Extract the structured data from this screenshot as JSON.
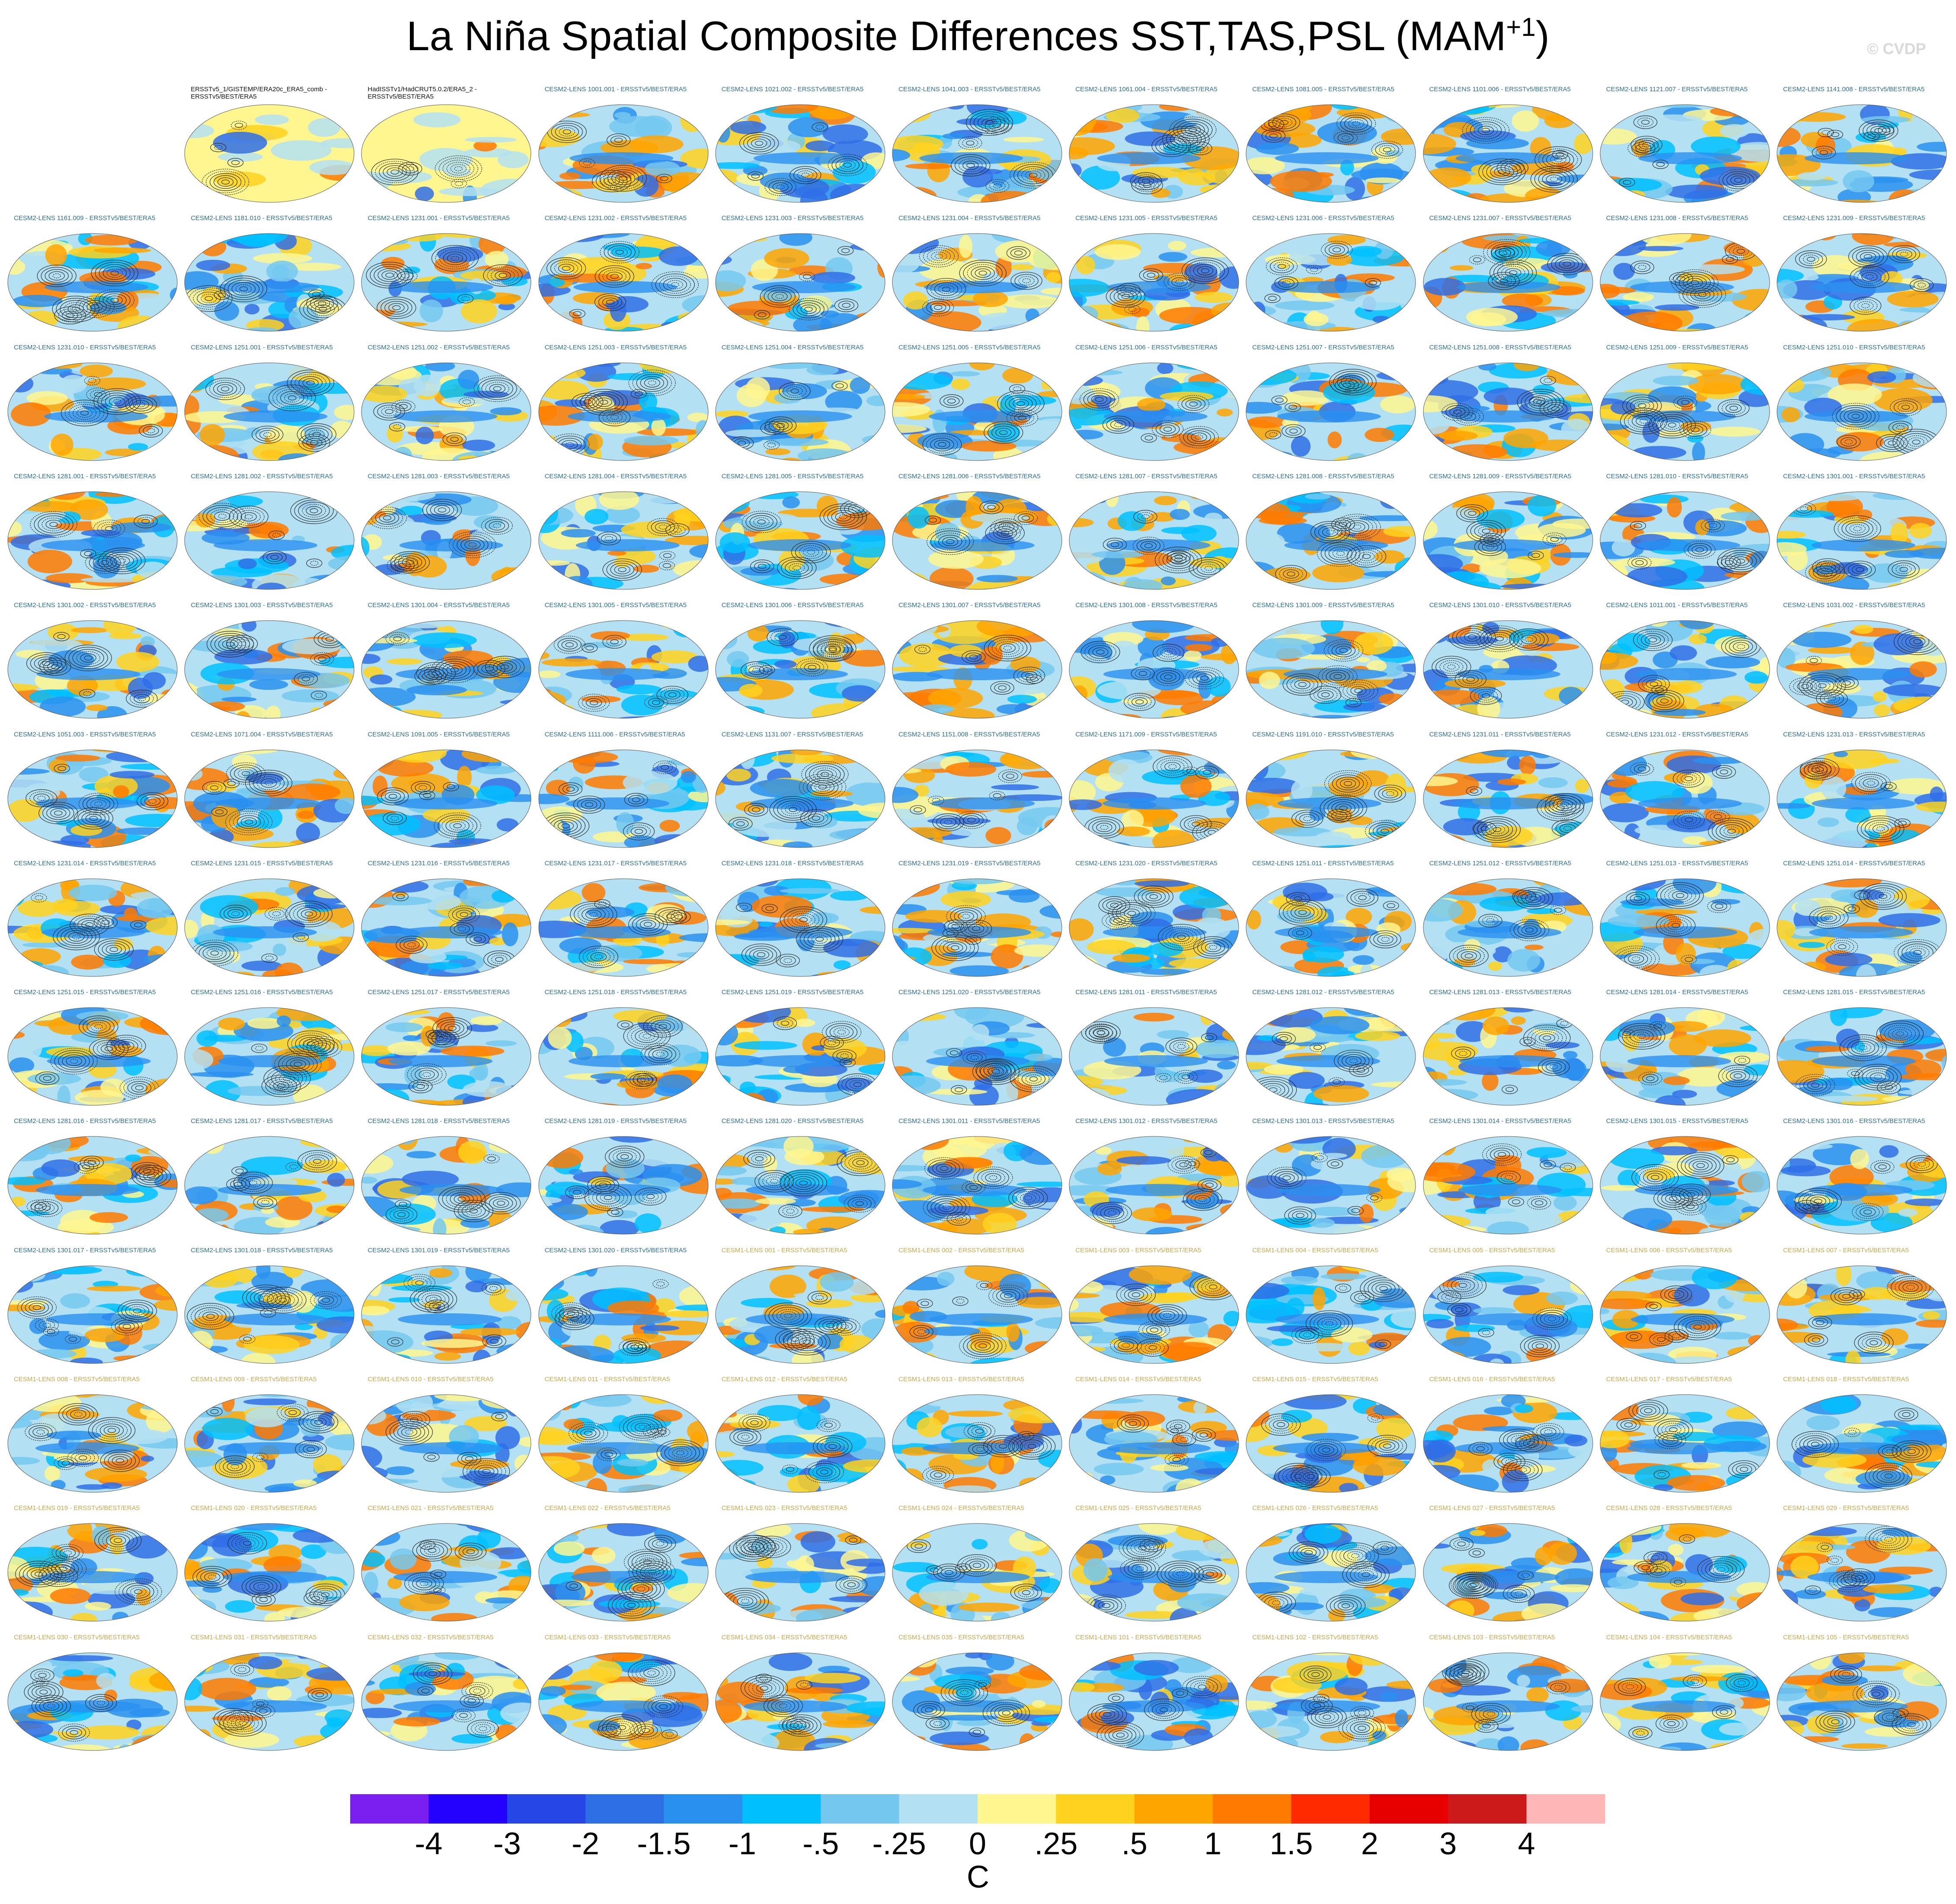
{
  "title": {
    "main": "La Niña Spatial Composite Differences SST,TAS,PSL (MAM",
    "sup": "+1",
    "close": ")"
  },
  "watermark": "© CVDP",
  "colors": {
    "lens2_label": "#2a6e93",
    "lens1_label": "#c8a64a",
    "obs_label": "#111111",
    "contour": "#2b2b2b"
  },
  "chart_data": {
    "type": "heatmap",
    "description_fields": "SST/TAS shaded, PSL contoured; one map per dataset",
    "colorbar": {
      "unit": "C",
      "tick_labels": [
        "-4",
        "-3",
        "-2",
        "-1.5",
        "-1",
        "-.5",
        "-.25",
        "0",
        ".25",
        ".5",
        "1",
        "1.5",
        "2",
        "3",
        "4"
      ],
      "colors": [
        "#7a1ff0",
        "#2400ff",
        "#2646e6",
        "#2f6fe6",
        "#2a90f0",
        "#00bfff",
        "#74c8f0",
        "#b3e0f2",
        "#fff68f",
        "#ffd21f",
        "#ffa500",
        "#ff7a00",
        "#ff2a00",
        "#e60000",
        "#cc1a1a",
        "#ffb6b6"
      ]
    },
    "panels": [
      "",
      "ERSSTv5_1/GISTEMP/ERA20c_ERA5_comb - ERSSTv5/BEST/ERA5",
      "HadISSTv1/HadCRUT5.0.2/ERA5_2 - ERSSTv5/BEST/ERA5",
      "CESM2-LENS 1001.001 - ERSSTv5/BEST/ERA5",
      "CESM2-LENS 1021.002 - ERSSTv5/BEST/ERA5",
      "CESM2-LENS 1041.003 - ERSSTv5/BEST/ERA5",
      "CESM2-LENS 1061.004 - ERSSTv5/BEST/ERA5",
      "CESM2-LENS 1081.005 - ERSSTv5/BEST/ERA5",
      "CESM2-LENS 1101.006 - ERSSTv5/BEST/ERA5",
      "CESM2-LENS 1121.007 - ERSSTv5/BEST/ERA5",
      "CESM2-LENS 1141.008 - ERSSTv5/BEST/ERA5",
      "CESM2-LENS 1161.009 - ERSSTv5/BEST/ERA5",
      "CESM2-LENS 1181.010 - ERSSTv5/BEST/ERA5",
      "CESM2-LENS 1231.001 - ERSSTv5/BEST/ERA5",
      "CESM2-LENS 1231.002 - ERSSTv5/BEST/ERA5",
      "CESM2-LENS 1231.003 - ERSSTv5/BEST/ERA5",
      "CESM2-LENS 1231.004 - ERSSTv5/BEST/ERA5",
      "CESM2-LENS 1231.005 - ERSSTv5/BEST/ERA5",
      "CESM2-LENS 1231.006 - ERSSTv5/BEST/ERA5",
      "CESM2-LENS 1231.007 - ERSSTv5/BEST/ERA5",
      "CESM2-LENS 1231.008 - ERSSTv5/BEST/ERA5",
      "CESM2-LENS 1231.009 - ERSSTv5/BEST/ERA5",
      "CESM2-LENS 1231.010 - ERSSTv5/BEST/ERA5",
      "CESM2-LENS 1251.001 - ERSSTv5/BEST/ERA5",
      "CESM2-LENS 1251.002 - ERSSTv5/BEST/ERA5",
      "CESM2-LENS 1251.003 - ERSSTv5/BEST/ERA5",
      "CESM2-LENS 1251.004 - ERSSTv5/BEST/ERA5",
      "CESM2-LENS 1251.005 - ERSSTv5/BEST/ERA5",
      "CESM2-LENS 1251.006 - ERSSTv5/BEST/ERA5",
      "CESM2-LENS 1251.007 - ERSSTv5/BEST/ERA5",
      "CESM2-LENS 1251.008 - ERSSTv5/BEST/ERA5",
      "CESM2-LENS 1251.009 - ERSSTv5/BEST/ERA5",
      "CESM2-LENS 1251.010 - ERSSTv5/BEST/ERA5",
      "CESM2-LENS 1281.001 - ERSSTv5/BEST/ERA5",
      "CESM2-LENS 1281.002 - ERSSTv5/BEST/ERA5",
      "CESM2-LENS 1281.003 - ERSSTv5/BEST/ERA5",
      "CESM2-LENS 1281.004 - ERSSTv5/BEST/ERA5",
      "CESM2-LENS 1281.005 - ERSSTv5/BEST/ERA5",
      "CESM2-LENS 1281.006 - ERSSTv5/BEST/ERA5",
      "CESM2-LENS 1281.007 - ERSSTv5/BEST/ERA5",
      "CESM2-LENS 1281.008 - ERSSTv5/BEST/ERA5",
      "CESM2-LENS 1281.009 - ERSSTv5/BEST/ERA5",
      "CESM2-LENS 1281.010 - ERSSTv5/BEST/ERA5",
      "CESM2-LENS 1301.001 - ERSSTv5/BEST/ERA5",
      "CESM2-LENS 1301.002 - ERSSTv5/BEST/ERA5",
      "CESM2-LENS 1301.003 - ERSSTv5/BEST/ERA5",
      "CESM2-LENS 1301.004 - ERSSTv5/BEST/ERA5",
      "CESM2-LENS 1301.005 - ERSSTv5/BEST/ERA5",
      "CESM2-LENS 1301.006 - ERSSTv5/BEST/ERA5",
      "CESM2-LENS 1301.007 - ERSSTv5/BEST/ERA5",
      "CESM2-LENS 1301.008 - ERSSTv5/BEST/ERA5",
      "CESM2-LENS 1301.009 - ERSSTv5/BEST/ERA5",
      "CESM2-LENS 1301.010 - ERSSTv5/BEST/ERA5",
      "CESM2-LENS 1011.001 - ERSSTv5/BEST/ERA5",
      "CESM2-LENS 1031.002 - ERSSTv5/BEST/ERA5",
      "CESM2-LENS 1051.003 - ERSSTv5/BEST/ERA5",
      "CESM2-LENS 1071.004 - ERSSTv5/BEST/ERA5",
      "CESM2-LENS 1091.005 - ERSSTv5/BEST/ERA5",
      "CESM2-LENS 1111.006 - ERSSTv5/BEST/ERA5",
      "CESM2-LENS 1131.007 - ERSSTv5/BEST/ERA5",
      "CESM2-LENS 1151.008 - ERSSTv5/BEST/ERA5",
      "CESM2-LENS 1171.009 - ERSSTv5/BEST/ERA5",
      "CESM2-LENS 1191.010 - ERSSTv5/BEST/ERA5",
      "CESM2-LENS 1231.011 - ERSSTv5/BEST/ERA5",
      "CESM2-LENS 1231.012 - ERSSTv5/BEST/ERA5",
      "CESM2-LENS 1231.013 - ERSSTv5/BEST/ERA5",
      "CESM2-LENS 1231.014 - ERSSTv5/BEST/ERA5",
      "CESM2-LENS 1231.015 - ERSSTv5/BEST/ERA5",
      "CESM2-LENS 1231.016 - ERSSTv5/BEST/ERA5",
      "CESM2-LENS 1231.017 - ERSSTv5/BEST/ERA5",
      "CESM2-LENS 1231.018 - ERSSTv5/BEST/ERA5",
      "CESM2-LENS 1231.019 - ERSSTv5/BEST/ERA5",
      "CESM2-LENS 1231.020 - ERSSTv5/BEST/ERA5",
      "CESM2-LENS 1251.011 - ERSSTv5/BEST/ERA5",
      "CESM2-LENS 1251.012 - ERSSTv5/BEST/ERA5",
      "CESM2-LENS 1251.013 - ERSSTv5/BEST/ERA5",
      "CESM2-LENS 1251.014 - ERSSTv5/BEST/ERA5",
      "CESM2-LENS 1251.015 - ERSSTv5/BEST/ERA5",
      "CESM2-LENS 1251.016 - ERSSTv5/BEST/ERA5",
      "CESM2-LENS 1251.017 - ERSSTv5/BEST/ERA5",
      "CESM2-LENS 1251.018 - ERSSTv5/BEST/ERA5",
      "CESM2-LENS 1251.019 - ERSSTv5/BEST/ERA5",
      "CESM2-LENS 1251.020 - ERSSTv5/BEST/ERA5",
      "CESM2-LENS 1281.011 - ERSSTv5/BEST/ERA5",
      "CESM2-LENS 1281.012 - ERSSTv5/BEST/ERA5",
      "CESM2-LENS 1281.013 - ERSSTv5/BEST/ERA5",
      "CESM2-LENS 1281.014 - ERSSTv5/BEST/ERA5",
      "CESM2-LENS 1281.015 - ERSSTv5/BEST/ERA5",
      "CESM2-LENS 1281.016 - ERSSTv5/BEST/ERA5",
      "CESM2-LENS 1281.017 - ERSSTv5/BEST/ERA5",
      "CESM2-LENS 1281.018 - ERSSTv5/BEST/ERA5",
      "CESM2-LENS 1281.019 - ERSSTv5/BEST/ERA5",
      "CESM2-LENS 1281.020 - ERSSTv5/BEST/ERA5",
      "CESM2-LENS 1301.011 - ERSSTv5/BEST/ERA5",
      "CESM2-LENS 1301.012 - ERSSTv5/BEST/ERA5",
      "CESM2-LENS 1301.013 - ERSSTv5/BEST/ERA5",
      "CESM2-LENS 1301.014 - ERSSTv5/BEST/ERA5",
      "CESM2-LENS 1301.015 - ERSSTv5/BEST/ERA5",
      "CESM2-LENS 1301.016 - ERSSTv5/BEST/ERA5",
      "CESM2-LENS 1301.017 - ERSSTv5/BEST/ERA5",
      "CESM2-LENS 1301.018 - ERSSTv5/BEST/ERA5",
      "CESM2-LENS 1301.019 - ERSSTv5/BEST/ERA5",
      "CESM2-LENS 1301.020 - ERSSTv5/BEST/ERA5",
      "CESM1-LENS 001 - ERSSTv5/BEST/ERA5",
      "CESM1-LENS 002 - ERSSTv5/BEST/ERA5",
      "CESM1-LENS 003 - ERSSTv5/BEST/ERA5",
      "CESM1-LENS 004 - ERSSTv5/BEST/ERA5",
      "CESM1-LENS 005 - ERSSTv5/BEST/ERA5",
      "CESM1-LENS 006 - ERSSTv5/BEST/ERA5",
      "CESM1-LENS 007 - ERSSTv5/BEST/ERA5",
      "CESM1-LENS 008 - ERSSTv5/BEST/ERA5",
      "CESM1-LENS 009 - ERSSTv5/BEST/ERA5",
      "CESM1-LENS 010 - ERSSTv5/BEST/ERA5",
      "CESM1-LENS 011 - ERSSTv5/BEST/ERA5",
      "CESM1-LENS 012 - ERSSTv5/BEST/ERA5",
      "CESM1-LENS 013 - ERSSTv5/BEST/ERA5",
      "CESM1-LENS 014 - ERSSTv5/BEST/ERA5",
      "CESM1-LENS 015 - ERSSTv5/BEST/ERA5",
      "CESM1-LENS 016 - ERSSTv5/BEST/ERA5",
      "CESM1-LENS 017 - ERSSTv5/BEST/ERA5",
      "CESM1-LENS 018 - ERSSTv5/BEST/ERA5",
      "CESM1-LENS 019 - ERSSTv5/BEST/ERA5",
      "CESM1-LENS 020 - ERSSTv5/BEST/ERA5",
      "CESM1-LENS 021 - ERSSTv5/BEST/ERA5",
      "CESM1-LENS 022 - ERSSTv5/BEST/ERA5",
      "CESM1-LENS 023 - ERSSTv5/BEST/ERA5",
      "CESM1-LENS 024 - ERSSTv5/BEST/ERA5",
      "CESM1-LENS 025 - ERSSTv5/BEST/ERA5",
      "CESM1-LENS 026 - ERSSTv5/BEST/ERA5",
      "CESM1-LENS 027 - ERSSTv5/BEST/ERA5",
      "CESM1-LENS 028 - ERSSTv5/BEST/ERA5",
      "CESM1-LENS 029 - ERSSTv5/BEST/ERA5",
      "CESM1-LENS 030 - ERSSTv5/BEST/ERA5",
      "CESM1-LENS 031 - ERSSTv5/BEST/ERA5",
      "CESM1-LENS 032 - ERSSTv5/BEST/ERA5",
      "CESM1-LENS 033 - ERSSTv5/BEST/ERA5",
      "CESM1-LENS 034 - ERSSTv5/BEST/ERA5",
      "CESM1-LENS 035 - ERSSTv5/BEST/ERA5",
      "CESM1-LENS 101 - ERSSTv5/BEST/ERA5",
      "CESM1-LENS 102 - ERSSTv5/BEST/ERA5",
      "CESM1-LENS 103 - ERSSTv5/BEST/ERA5",
      "CESM1-LENS 104 - ERSSTv5/BEST/ERA5",
      "CESM1-LENS 105 - ERSSTv5/BEST/ERA5"
    ]
  }
}
